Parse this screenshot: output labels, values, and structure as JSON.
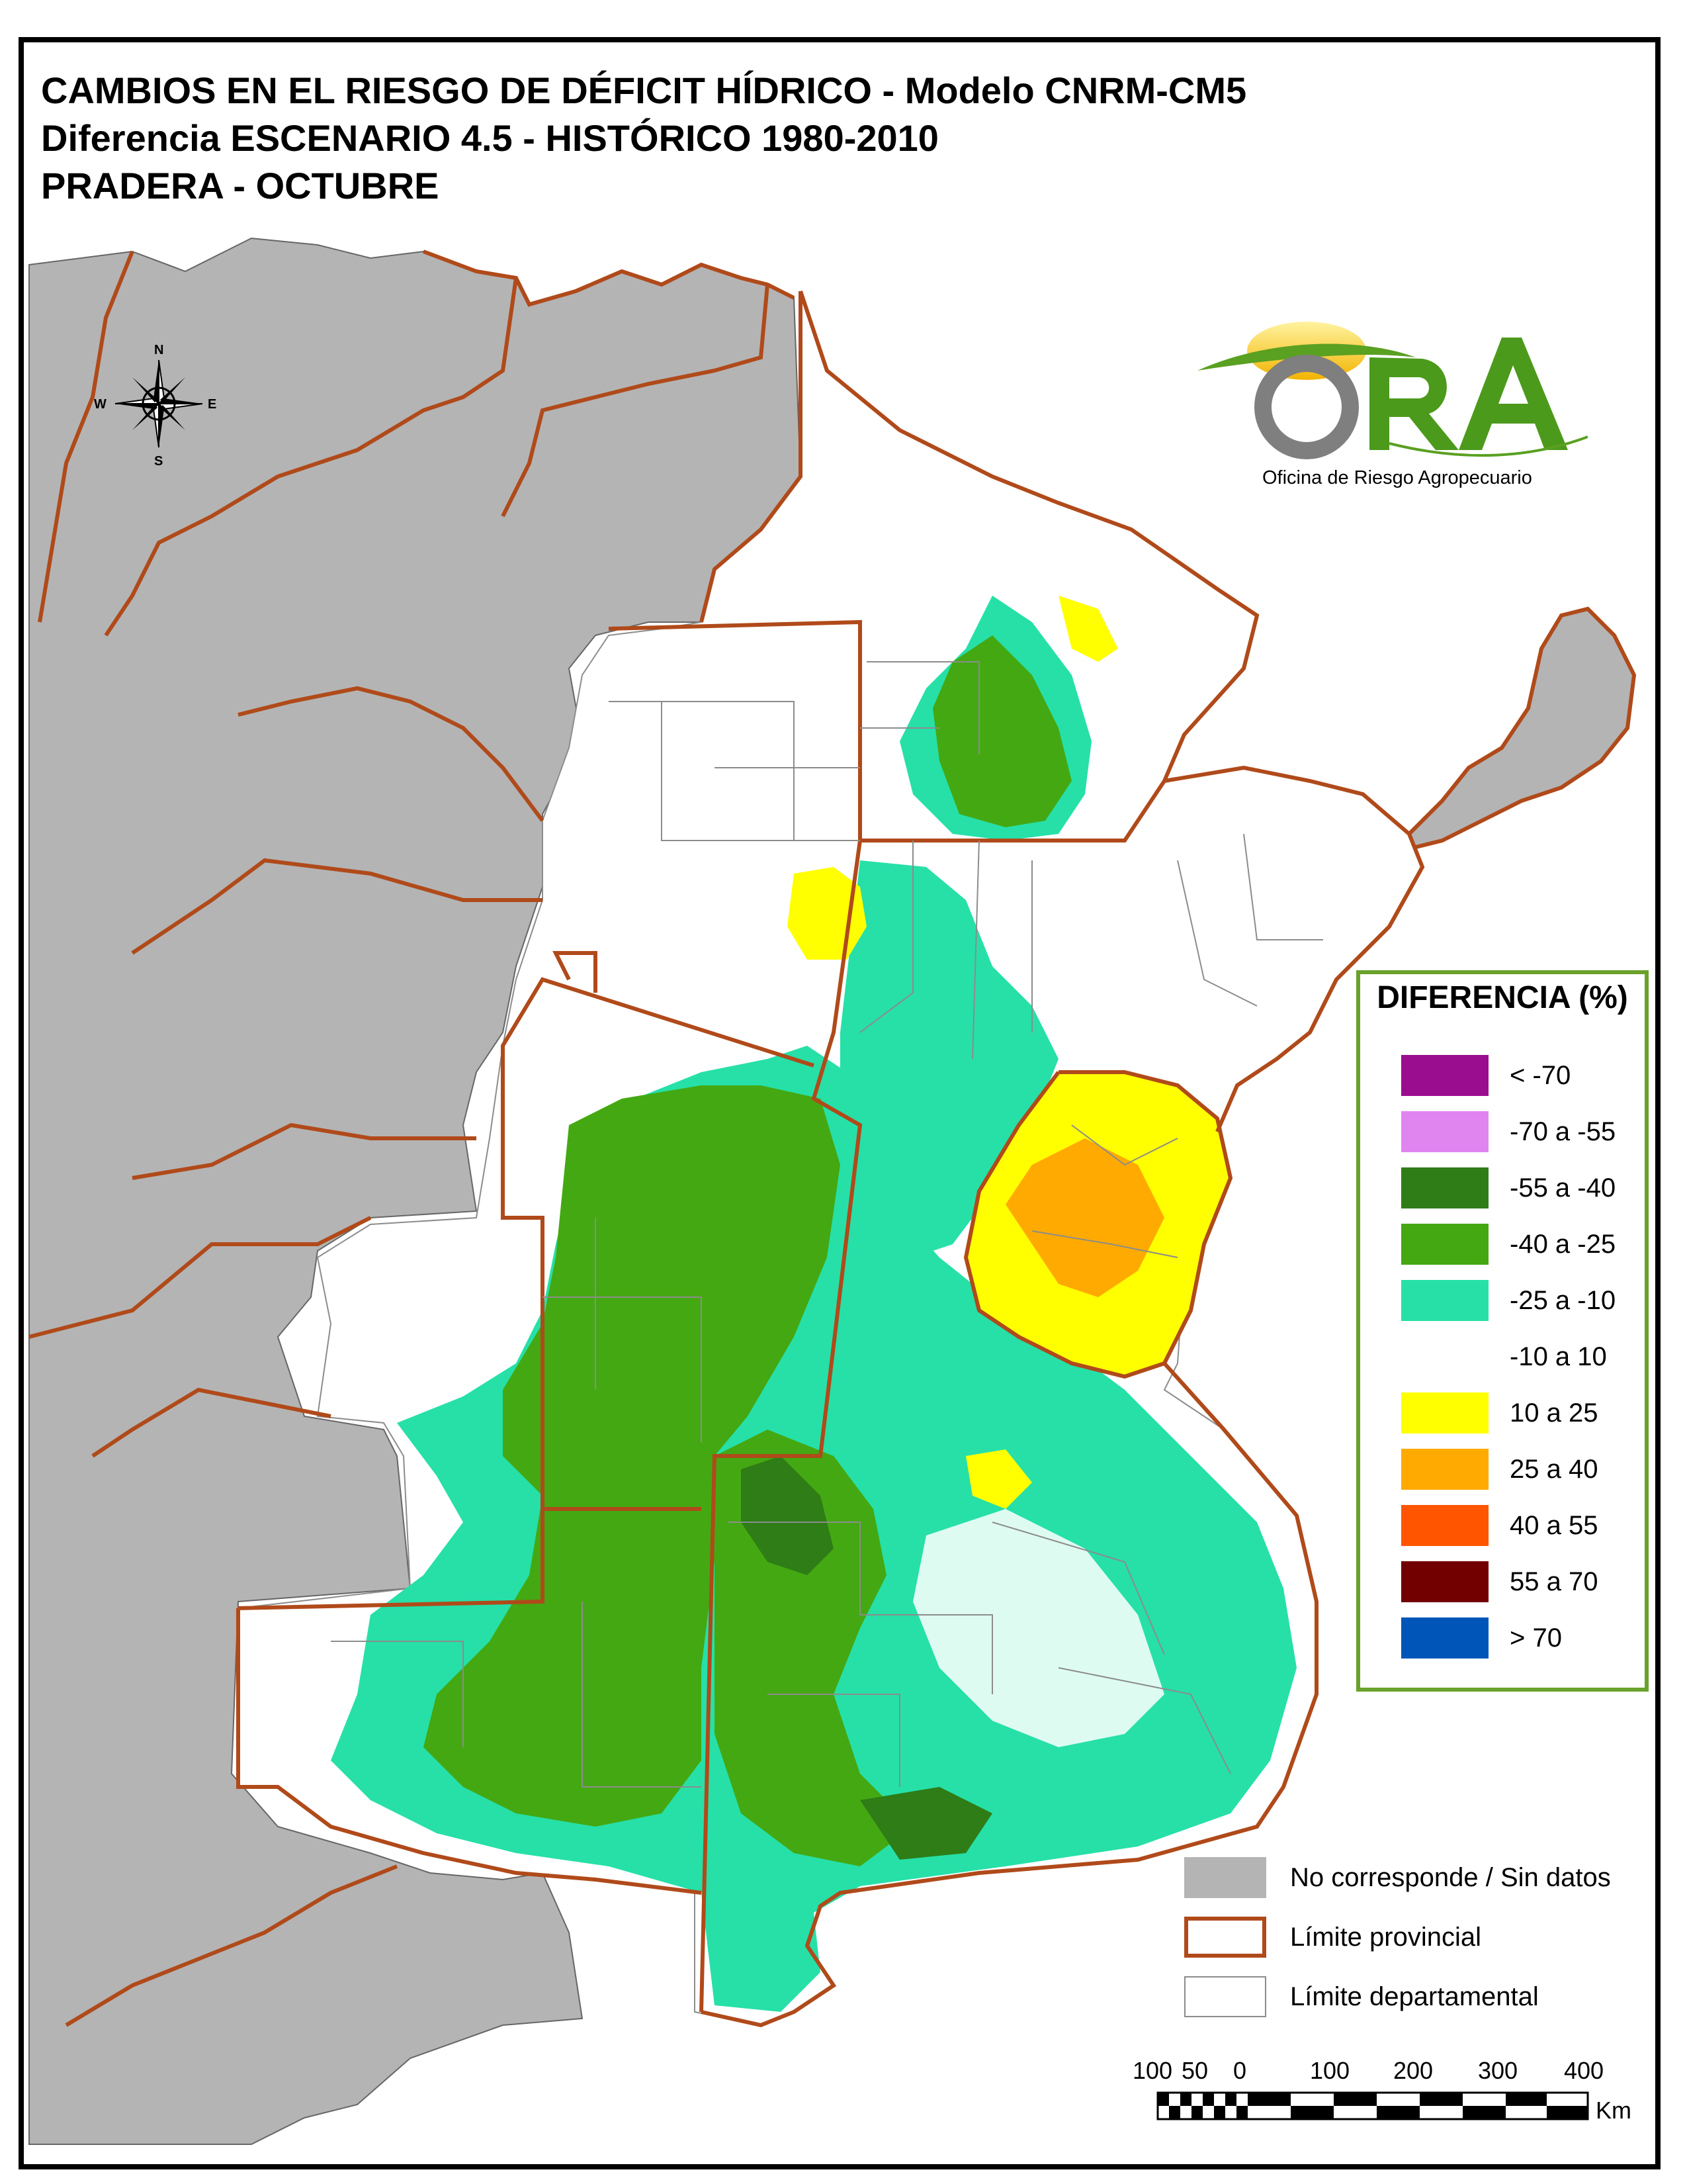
{
  "title": {
    "line1": "CAMBIOS EN EL RIESGO DE DÉFICIT HÍDRICO - Modelo CNRM-CM5",
    "line2": "Diferencia ESCENARIO 4.5 - HISTÓRICO 1980-2010",
    "line3": "PRADERA - OCTUBRE"
  },
  "logo": {
    "name": "ORA",
    "subtitle": "Oficina de Riesgo Agropecuario"
  },
  "compass": {
    "n": "N",
    "s": "S",
    "e": "E",
    "w": "W"
  },
  "legend": {
    "title": "DIFERENCIA (%)",
    "items": [
      {
        "label": "< -70",
        "color": "#9b0d8f"
      },
      {
        "label": "-70 a -55",
        "color": "#e085f0"
      },
      {
        "label": "-55 a -40",
        "color": "#2e7d16"
      },
      {
        "label": "-40 a -25",
        "color": "#44a812"
      },
      {
        "label": "-25 a -10",
        "color": "#26e0a8"
      },
      {
        "label": "-10 a 10",
        "color": "#ffffff"
      },
      {
        "label": "10 a 25",
        "color": "#ffff00"
      },
      {
        "label": "25 a 40",
        "color": "#ffaa00"
      },
      {
        "label": "40 a 55",
        "color": "#ff5500"
      },
      {
        "label": "55 a 70",
        "color": "#730000"
      },
      {
        "label": "> 70",
        "color": "#0055b8"
      }
    ]
  },
  "layers": {
    "no_data": {
      "label": "No corresponde / Sin datos",
      "color": "#b4b4b4"
    },
    "provincial": {
      "label": "Límite provincial",
      "color": "#b04a1a"
    },
    "departmental": {
      "label": "Límite departamental",
      "color": "#8c8c8c"
    }
  },
  "scale": {
    "ticks": [
      "100",
      "50",
      "0",
      "100",
      "200",
      "300",
      "400"
    ],
    "unit": "Km"
  }
}
